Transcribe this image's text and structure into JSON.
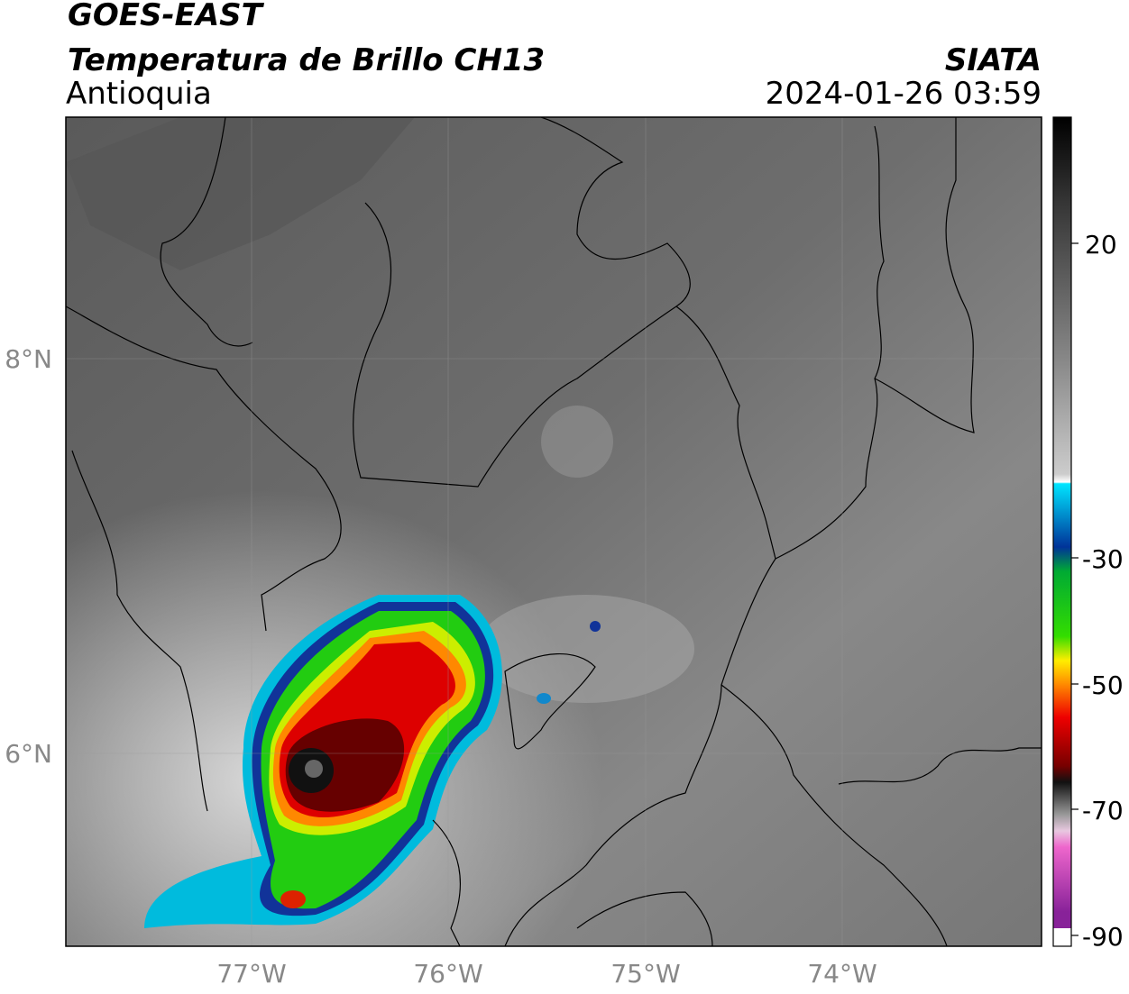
{
  "header": {
    "title": "GOES-EAST",
    "subtitle": "Temperatura de Brillo CH13",
    "region": "Antioquia",
    "source": "SIATA",
    "datetime": "2024-01-26 03:59"
  },
  "map": {
    "lon_labels": [
      "77°W",
      "76°W",
      "75°W",
      "74°W"
    ],
    "lat_labels": [
      "8°N",
      "6°N"
    ]
  },
  "colorbar": {
    "tick_labels": [
      "20",
      "-30",
      "-50",
      "-70",
      "-90"
    ]
  }
}
